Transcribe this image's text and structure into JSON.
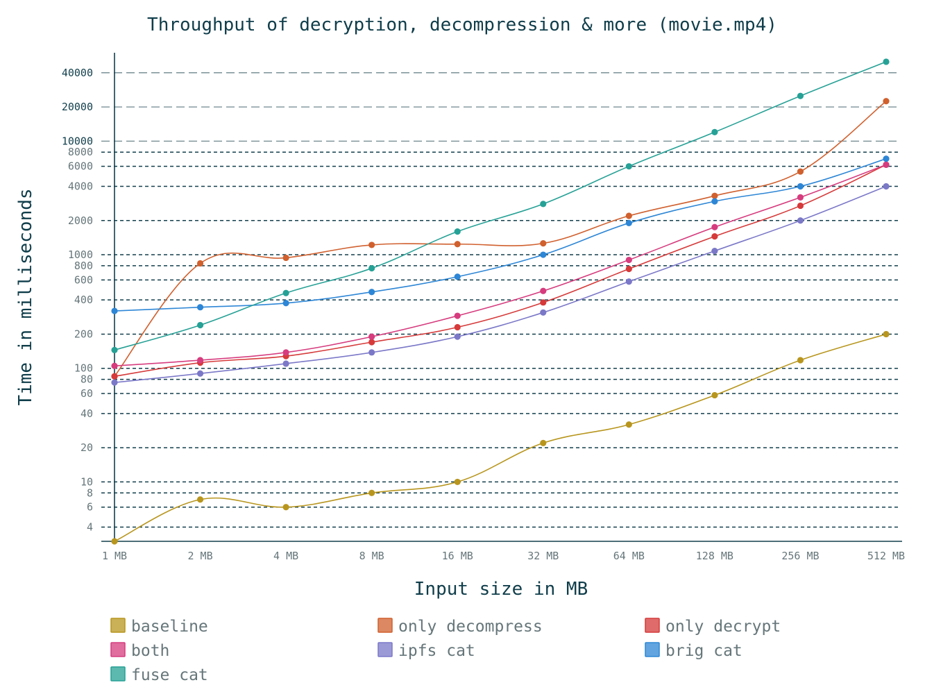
{
  "chart_data": {
    "type": "line",
    "title": "Throughput of decryption, decompression & more (movie.mp4)",
    "xlabel": "Input size in MB",
    "ylabel": "Time in milliseconds",
    "yscale": "log",
    "ylim": [
      3,
      60000
    ],
    "grid": "horizontal dashed",
    "legend_position": "bottom",
    "categories": [
      "1 MB",
      "2 MB",
      "4 MB",
      "8 MB",
      "16 MB",
      "32 MB",
      "64 MB",
      "128 MB",
      "256 MB",
      "512 MB"
    ],
    "y_ticks": [
      {
        "value": 4,
        "label": "4"
      },
      {
        "value": 6,
        "label": "6"
      },
      {
        "value": 8,
        "label": "8"
      },
      {
        "value": 10,
        "label": "10"
      },
      {
        "value": 20,
        "label": "20"
      },
      {
        "value": 40,
        "label": "40"
      },
      {
        "value": 60,
        "label": "60"
      },
      {
        "value": 80,
        "label": "80"
      },
      {
        "value": 100,
        "label": "100"
      },
      {
        "value": 200,
        "label": "200"
      },
      {
        "value": 400,
        "label": "400"
      },
      {
        "value": 600,
        "label": "600"
      },
      {
        "value": 800,
        "label": "800"
      },
      {
        "value": 1000,
        "label": "1000"
      },
      {
        "value": 2000,
        "label": "2000"
      },
      {
        "value": 4000,
        "label": "4000"
      },
      {
        "value": 6000,
        "label": "6000"
      },
      {
        "value": 8000,
        "label": "8000"
      },
      {
        "value": 10000,
        "label": "10000"
      },
      {
        "value": 20000,
        "label": "20000"
      },
      {
        "value": 40000,
        "label": "40000"
      }
    ],
    "series": [
      {
        "name": "baseline",
        "color": "#b8961e",
        "values": [
          3,
          7,
          6,
          8,
          10,
          22,
          32,
          58,
          118,
          200
        ]
      },
      {
        "name": "only decompress",
        "color": "#d0602e",
        "values": [
          85,
          840,
          940,
          1220,
          1240,
          1260,
          2200,
          3300,
          5400,
          22500
        ]
      },
      {
        "name": "only decrypt",
        "color": "#d63a3a",
        "values": [
          85,
          112,
          128,
          170,
          230,
          380,
          750,
          1450,
          2700,
          6200
        ]
      },
      {
        "name": "both",
        "color": "#d63c7e",
        "values": [
          105,
          118,
          138,
          190,
          290,
          480,
          900,
          1750,
          3200,
          6200
        ]
      },
      {
        "name": "ipfs cat",
        "color": "#7b78c8",
        "values": [
          75,
          90,
          110,
          138,
          190,
          310,
          580,
          1080,
          2000,
          4000
        ]
      },
      {
        "name": "brig cat",
        "color": "#2d86d6",
        "values": [
          320,
          345,
          375,
          470,
          640,
          1000,
          1900,
          2950,
          4000,
          7000
        ]
      },
      {
        "name": "fuse cat",
        "color": "#26a196",
        "values": [
          145,
          240,
          460,
          760,
          1600,
          2800,
          6000,
          12000,
          25000,
          50000
        ]
      }
    ]
  }
}
